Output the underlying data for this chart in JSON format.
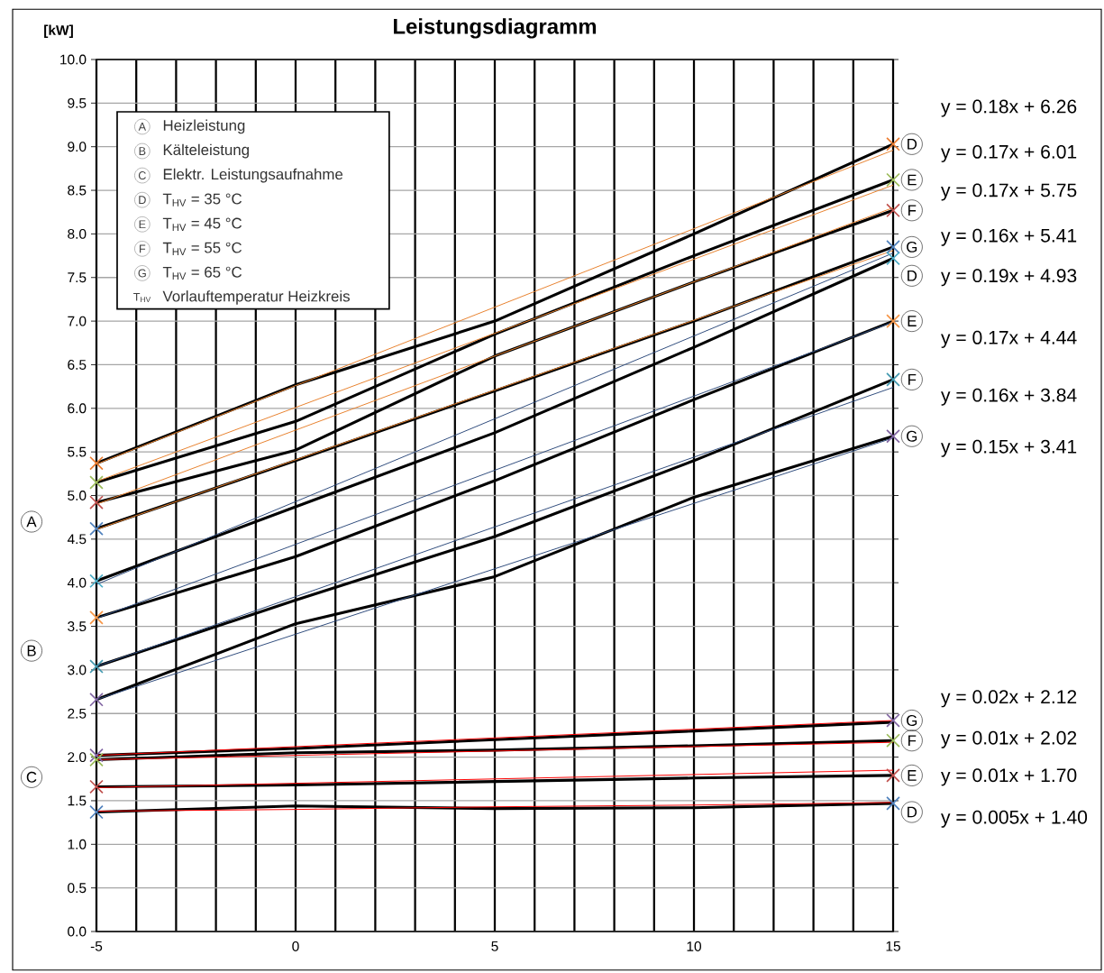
{
  "chart_data": {
    "type": "line",
    "title": "Leistungsdiagramm",
    "ylabel": "[kW]",
    "x": [
      -5,
      0,
      5,
      10,
      15
    ],
    "xlim": [
      -5,
      15
    ],
    "xticks": [
      -5,
      {
        "value": -4,
        "label": null
      },
      {
        "value": -3,
        "label": null
      },
      {
        "value": -2,
        "label": null
      },
      {
        "value": -1,
        "label": null
      },
      0,
      {
        "value": 1,
        "label": null
      },
      {
        "value": 2,
        "label": null
      },
      {
        "value": 3,
        "label": null
      },
      {
        "value": 4,
        "label": null
      },
      5,
      {
        "value": 6,
        "label": null
      },
      {
        "value": 7,
        "label": null
      },
      {
        "value": 8,
        "label": null
      },
      {
        "value": 9,
        "label": null
      },
      10,
      {
        "value": 11,
        "label": null
      },
      {
        "value": 12,
        "label": null
      },
      {
        "value": 13,
        "label": null
      },
      {
        "value": 14,
        "label": null
      },
      15
    ],
    "ylim": [
      0,
      10
    ],
    "yticks": [
      {
        "value": 0,
        "label": "0.0"
      },
      {
        "value": 0.5,
        "label": "0.5"
      },
      {
        "value": 1,
        "label": "1.0"
      },
      {
        "value": 1.5,
        "label": "1.5"
      },
      {
        "value": 2,
        "label": "2.0"
      },
      {
        "value": 2.5,
        "label": "2.5"
      },
      {
        "value": 3,
        "label": "3.0"
      },
      {
        "value": 3.5,
        "label": "3.5"
      },
      {
        "value": 4,
        "label": "4.0"
      },
      {
        "value": 4.5,
        "label": "4.5"
      },
      {
        "value": 5,
        "label": "5.0"
      },
      {
        "value": 5.5,
        "label": "5.5"
      },
      {
        "value": 6,
        "label": "6.0"
      },
      {
        "value": 6.5,
        "label": "6.5"
      },
      {
        "value": 7,
        "label": "7.0"
      },
      {
        "value": 7.5,
        "label": "7.5"
      },
      {
        "value": 8,
        "label": "8.0"
      },
      {
        "value": 8.5,
        "label": "8.5"
      },
      {
        "value": 9,
        "label": "9.0"
      },
      {
        "value": 9.5,
        "label": "9.5"
      },
      {
        "value": 10,
        "label": "10.0"
      }
    ],
    "grid": true,
    "series": [
      {
        "color": "#000000",
        "values": [
          5.37,
          6.27,
          7.0,
          8.0,
          9.03
        ]
      },
      {
        "color": "#000000",
        "values": [
          5.15,
          5.85,
          6.85,
          7.75,
          8.62
        ]
      },
      {
        "color": "#000000",
        "values": [
          4.92,
          5.52,
          6.6,
          7.45,
          8.27
        ]
      },
      {
        "color": "#000000",
        "values": [
          4.62,
          5.4,
          6.2,
          7.0,
          7.85
        ]
      },
      {
        "color": "#000000",
        "values": [
          4.02,
          4.87,
          5.72,
          6.7,
          7.72
        ]
      },
      {
        "color": "#000000",
        "values": [
          3.6,
          4.3,
          5.17,
          6.1,
          7.0
        ]
      },
      {
        "color": "#000000",
        "values": [
          3.04,
          3.8,
          4.53,
          5.4,
          6.33
        ]
      },
      {
        "color": "#000000",
        "values": [
          2.66,
          3.53,
          4.07,
          4.98,
          5.68
        ]
      },
      {
        "color": "#000000",
        "values": [
          2.02,
          2.1,
          2.2,
          2.3,
          2.4
        ]
      },
      {
        "color": "#000000",
        "values": [
          1.97,
          2.05,
          2.08,
          2.13,
          2.19
        ]
      },
      {
        "color": "#000000",
        "values": [
          1.66,
          1.68,
          1.72,
          1.76,
          1.79
        ]
      },
      {
        "color": "#000000",
        "values": [
          1.37,
          1.44,
          1.41,
          1.42,
          1.47
        ]
      },
      {
        "color": "#e8822e",
        "values": [
          5.36,
          6.26,
          7.16,
          8.06,
          8.96
        ]
      },
      {
        "color": "#e8822e",
        "values": [
          5.16,
          6.01,
          6.86,
          7.71,
          8.56
        ]
      },
      {
        "color": "#e8822e",
        "values": [
          4.9,
          5.75,
          6.6,
          7.45,
          8.3
        ]
      },
      {
        "color": "#e8822e",
        "values": [
          4.61,
          5.41,
          6.21,
          7.01,
          7.81
        ]
      },
      {
        "color": "#2f4b7c",
        "values": [
          3.98,
          4.93,
          5.88,
          6.83,
          7.78
        ]
      },
      {
        "color": "#2f4b7c",
        "values": [
          3.59,
          4.44,
          5.29,
          6.14,
          6.99
        ]
      },
      {
        "color": "#2f4b7c",
        "values": [
          3.04,
          3.84,
          4.64,
          5.44,
          6.24
        ]
      },
      {
        "color": "#2f4b7c",
        "values": [
          2.66,
          3.41,
          4.16,
          4.91,
          5.66
        ]
      },
      {
        "color": "#ff0000",
        "values": [
          2.02,
          2.12,
          2.22,
          2.32,
          2.42
        ]
      },
      {
        "color": "#ff0000",
        "values": [
          1.97,
          2.02,
          2.07,
          2.12,
          2.17
        ]
      },
      {
        "color": "#ff0000",
        "values": [
          1.65,
          1.7,
          1.75,
          1.8,
          1.85
        ]
      },
      {
        "color": "#ff0000",
        "values": [
          1.38,
          1.4,
          1.43,
          1.45,
          1.48
        ]
      },
      {
        "type": "scatter",
        "marker": "cross",
        "color": "#ed7d31",
        "values": [
          5.37,
          null,
          null,
          null,
          9.03
        ]
      },
      {
        "type": "scatter",
        "marker": "cross",
        "color": "#9bbb59",
        "values": [
          5.15,
          null,
          null,
          null,
          8.62
        ]
      },
      {
        "type": "scatter",
        "marker": "cross",
        "color": "#c0504d",
        "values": [
          4.92,
          null,
          null,
          null,
          8.27
        ]
      },
      {
        "type": "scatter",
        "marker": "cross",
        "color": "#4f81bd",
        "values": [
          4.62,
          null,
          null,
          null,
          7.85
        ]
      },
      {
        "type": "scatter",
        "marker": "cross",
        "color": "#4bacc6",
        "values": [
          4.02,
          null,
          null,
          null,
          7.72
        ]
      },
      {
        "type": "scatter",
        "marker": "cross",
        "color": "#f79646",
        "values": [
          3.6,
          null,
          null,
          null,
          7.0
        ]
      },
      {
        "type": "scatter",
        "marker": "cross",
        "color": "#4198af",
        "values": [
          3.04,
          null,
          null,
          null,
          6.33
        ]
      },
      {
        "type": "scatter",
        "marker": "cross",
        "color": "#8064a2",
        "values": [
          2.66,
          null,
          null,
          null,
          5.68
        ]
      },
      {
        "type": "scatter",
        "marker": "cross",
        "color": "#8064a2",
        "values": [
          2.02,
          null,
          null,
          null,
          2.42
        ]
      },
      {
        "type": "scatter",
        "marker": "cross",
        "color": "#9bbb59",
        "values": [
          1.97,
          null,
          null,
          null,
          2.19
        ]
      },
      {
        "type": "scatter",
        "marker": "cross",
        "color": "#c0504d",
        "values": [
          1.66,
          null,
          null,
          null,
          1.79
        ]
      },
      {
        "type": "scatter",
        "marker": "cross",
        "color": "#4f81bd",
        "values": [
          1.37,
          null,
          null,
          null,
          1.47
        ]
      }
    ],
    "annotations": [
      "A",
      "Heizleistung",
      "B",
      "Kälteleistung",
      "C",
      "Elektr. Leistungsaufnahme",
      "D",
      "T$_{HV}$ = 35 °C",
      "E",
      "T$_{HV}$ = 45 °C",
      "F",
      "T$_{HV}$ = 55 °C",
      "G",
      "T$_{HV}$ = 65 °C",
      "T$_{HV}$",
      "Vorlauftemperatur Heizkreis",
      "A",
      "B",
      "C",
      "D",
      "E",
      "F",
      "G",
      "D",
      "E",
      "F",
      "G",
      "G",
      "F",
      "E",
      "D",
      "y = 0.18x + 6.26",
      "y = 0.17x + 6.01",
      "y = 0.17x + 5.75",
      "y = 0.16x + 5.41",
      "y = 0.19x + 4.93",
      "y = 0.17x + 4.44",
      "y = 0.16x + 3.84",
      "y = 0.15x + 3.41",
      "y = 0.02x + 2.12",
      "y = 0.01x + 2.02",
      "y = 0.01x + 1.70",
      "y = 0.005x + 1.40"
    ]
  }
}
